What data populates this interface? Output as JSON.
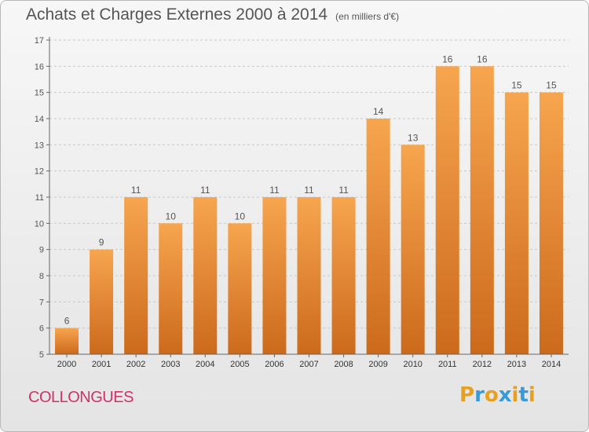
{
  "header": {
    "title": "Achats et Charges Externes 2000 à 2014",
    "subtitle": "(en milliers d'€)"
  },
  "footer": {
    "commune": "COLLONGUES",
    "logo_text": "Proxiti",
    "logo_colors": [
      "#e8a020",
      "#3a9ad9",
      "#e8a020",
      "#3a9ad9",
      "#e8a020",
      "#3a9ad9",
      "#e8a020"
    ]
  },
  "colors": {
    "bar_light": "#f7a54f",
    "bar_dark": "#cc6a1c",
    "grid": "#c8c8c8",
    "text": "#555555",
    "commune": "#cc3366"
  },
  "chart_data": {
    "type": "bar",
    "title": "Achats et Charges Externes 2000 à 2014",
    "subtitle": "(en milliers d'€)",
    "categories": [
      "2000",
      "2001",
      "2002",
      "2003",
      "2004",
      "2005",
      "2006",
      "2007",
      "2008",
      "2009",
      "2010",
      "2011",
      "2012",
      "2013",
      "2014"
    ],
    "values": [
      6,
      9,
      11,
      10,
      11,
      10,
      11,
      11,
      11,
      14,
      13,
      16,
      16,
      15,
      15
    ],
    "ylim": [
      5,
      17
    ],
    "yticks": [
      5,
      6,
      7,
      8,
      9,
      10,
      11,
      12,
      13,
      14,
      15,
      16,
      17
    ],
    "grid": true,
    "xlabel": "",
    "ylabel": ""
  }
}
